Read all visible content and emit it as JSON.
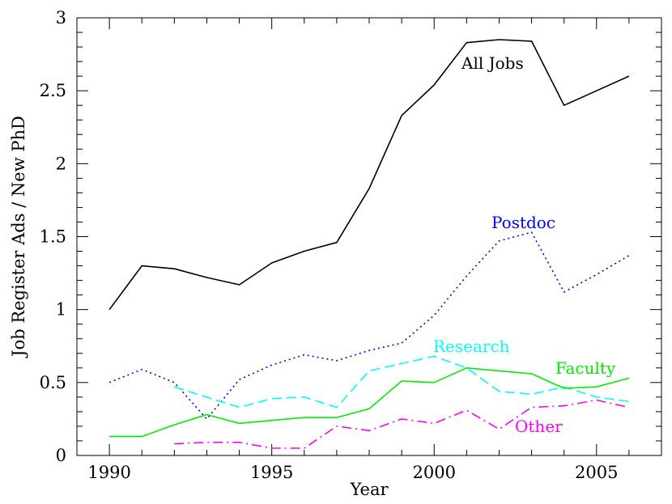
{
  "chart_data": {
    "type": "line",
    "title": "",
    "xlabel": "Year",
    "ylabel": "Job Register Ads / New PhD",
    "xlim": [
      1989,
      2007
    ],
    "ylim": [
      0,
      3
    ],
    "x_ticks": [
      1990,
      1995,
      2000,
      2005
    ],
    "y_ticks": [
      0,
      0.5,
      1,
      1.5,
      2,
      2.5,
      3
    ],
    "x_tick_labels": [
      "1990",
      "1995",
      "2000",
      "2005"
    ],
    "y_tick_labels": [
      "0",
      "0.5",
      "1",
      "1.5",
      "2",
      "2.5",
      "3"
    ],
    "grid": false,
    "legend": "none (series labeled directly on chart)",
    "series": [
      {
        "name": "All Jobs",
        "color": "#000000",
        "style": "solid",
        "x": [
          1990,
          1991,
          1992,
          1993,
          1994,
          1995,
          1996,
          1997,
          1998,
          1999,
          2000,
          2001,
          2002,
          2003,
          2004,
          2005,
          2006
        ],
        "values": [
          1.0,
          1.3,
          1.28,
          1.22,
          1.17,
          1.32,
          1.4,
          1.46,
          1.83,
          2.33,
          2.54,
          2.83,
          2.85,
          2.84,
          2.4,
          2.5,
          2.6
        ]
      },
      {
        "name": "Postdoc",
        "color": "#0000ff",
        "style": "dotted",
        "x": [
          1990,
          1991,
          1992,
          1993,
          1994,
          1995,
          1996,
          1997,
          1998,
          1999,
          2000,
          2001,
          2002,
          2003,
          2004,
          2005,
          2006
        ],
        "values": [
          0.5,
          0.59,
          0.5,
          0.25,
          0.52,
          0.62,
          0.69,
          0.65,
          0.72,
          0.77,
          0.96,
          1.23,
          1.47,
          1.53,
          1.12,
          1.24,
          1.37
        ]
      },
      {
        "name": "Research",
        "color": "#00ffff",
        "style": "dashed",
        "x": [
          1992,
          1993,
          1994,
          1995,
          1996,
          1997,
          1998,
          1999,
          2000,
          2001,
          2002,
          2003,
          2004,
          2005,
          2006
        ],
        "values": [
          0.47,
          0.4,
          0.33,
          0.39,
          0.4,
          0.33,
          0.58,
          0.63,
          0.68,
          0.6,
          0.44,
          0.42,
          0.47,
          0.4,
          0.37
        ]
      },
      {
        "name": "Faculty",
        "color": "#00ee00",
        "style": "solid",
        "x": [
          1990,
          1991,
          1992,
          1993,
          1994,
          1995,
          1996,
          1997,
          1998,
          1999,
          2000,
          2001,
          2002,
          2003,
          2004,
          2005,
          2006
        ],
        "values": [
          0.13,
          0.13,
          0.21,
          0.28,
          0.22,
          0.24,
          0.26,
          0.26,
          0.32,
          0.51,
          0.5,
          0.6,
          0.58,
          0.56,
          0.46,
          0.47,
          0.53
        ]
      },
      {
        "name": "Other",
        "color": "#ff00ff",
        "style": "dashdot",
        "x": [
          1992,
          1993,
          1994,
          1995,
          1996,
          1997,
          1998,
          1999,
          2000,
          2001,
          2002,
          2003,
          2004,
          2005,
          2006
        ],
        "values": [
          0.08,
          0.09,
          0.09,
          0.05,
          0.05,
          0.2,
          0.17,
          0.25,
          0.22,
          0.31,
          0.18,
          0.33,
          0.34,
          0.38,
          0.33
        ]
      }
    ]
  }
}
